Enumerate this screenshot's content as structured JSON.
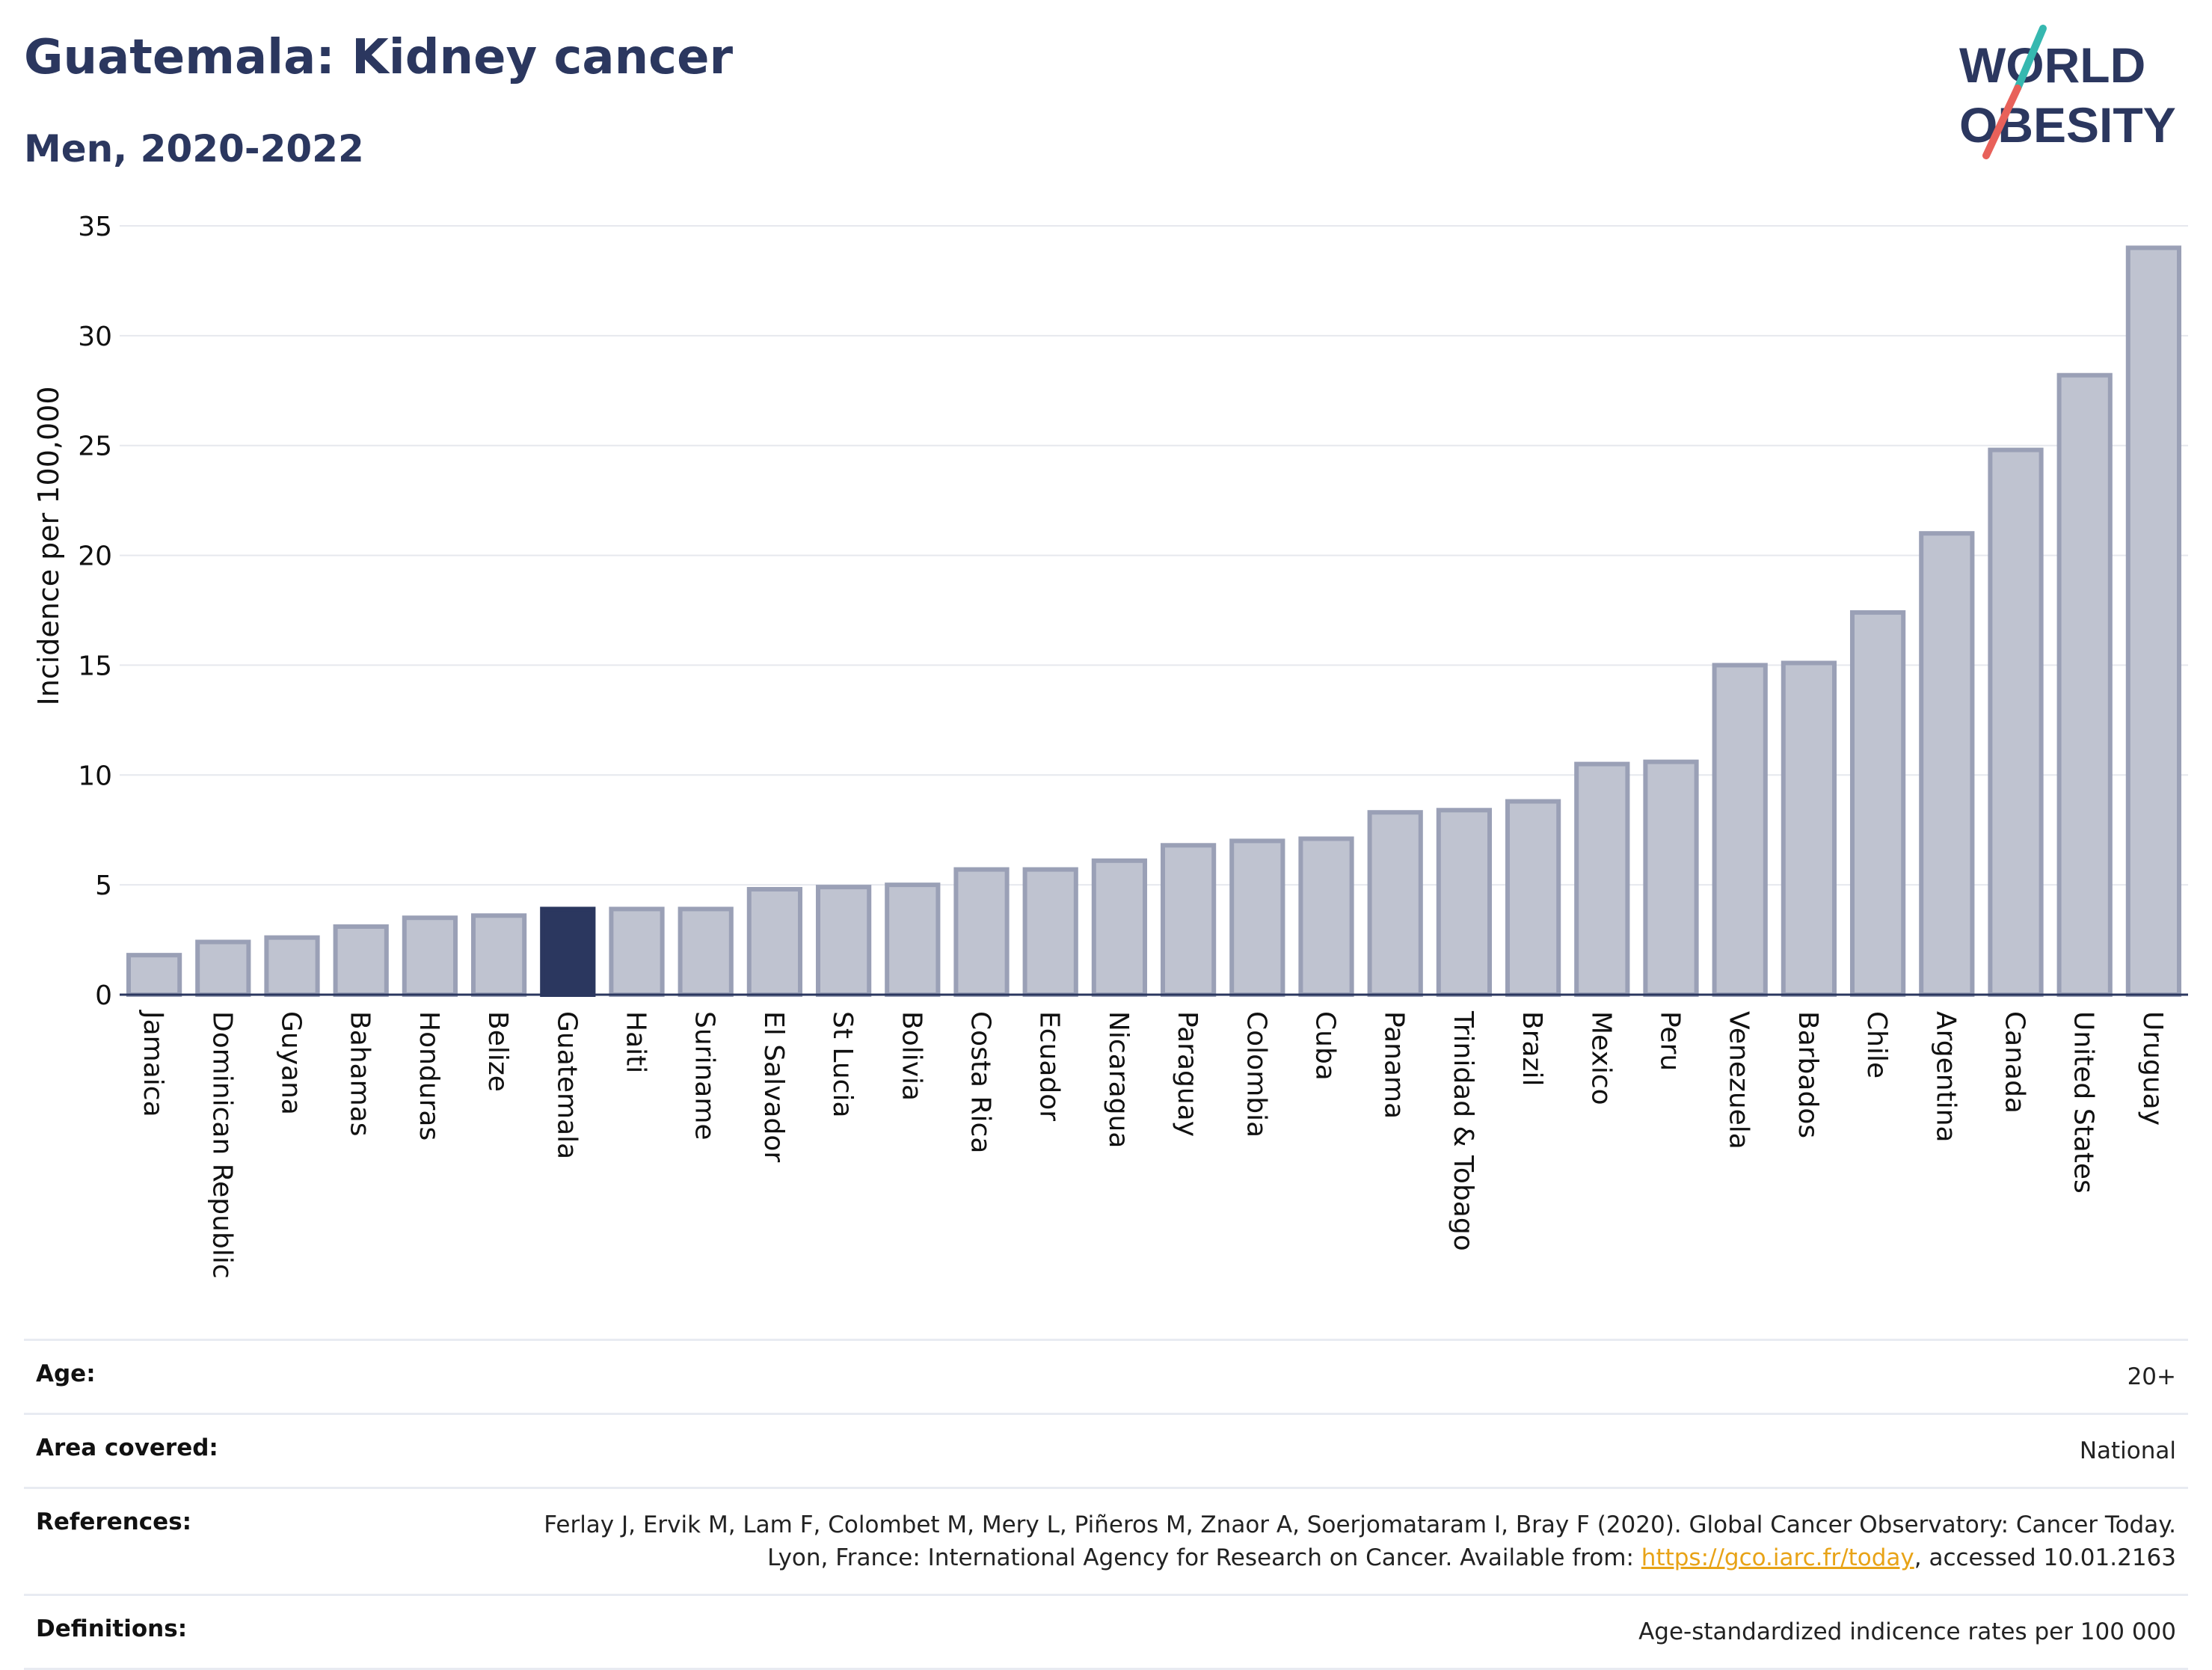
{
  "header": {
    "title": "Guatemala: Kidney cancer",
    "subtitle": "Men, 2020-2022"
  },
  "logo": {
    "line1": "WORLD",
    "line2": "OBESITY",
    "colors": {
      "text": "#2b375f",
      "slash_teal": "#36b8b0",
      "slash_red": "#e8615a"
    }
  },
  "colors": {
    "highlight_bar": "#2b375f",
    "bar_fill": "#bfc3d0",
    "bar_stroke": "#9aa0b6",
    "grid": "#e6e8ee",
    "axis": "#2b375f"
  },
  "chart_data": {
    "type": "bar",
    "title": "Guatemala: Kidney cancer",
    "subtitle": "Men, 2020-2022",
    "ylabel": "Incidence per 100,000",
    "xlabel": "",
    "ylim": [
      0,
      35
    ],
    "yticks": [
      0,
      5,
      10,
      15,
      20,
      25,
      30,
      35
    ],
    "grid": true,
    "highlight": "Guatemala",
    "categories": [
      "Jamaica",
      "Dominican Republic",
      "Guyana",
      "Bahamas",
      "Honduras",
      "Belize",
      "Guatemala",
      "Haiti",
      "Suriname",
      "El Salvador",
      "St Lucia",
      "Bolivia",
      "Costa Rica",
      "Ecuador",
      "Nicaragua",
      "Paraguay",
      "Colombia",
      "Cuba",
      "Panama",
      "Trinidad & Tobago",
      "Brazil",
      "Mexico",
      "Peru",
      "Venezuela",
      "Barbados",
      "Chile",
      "Argentina",
      "Canada",
      "United States",
      "Uruguay"
    ],
    "values": [
      1.8,
      2.4,
      2.6,
      3.1,
      3.5,
      3.6,
      3.9,
      3.9,
      3.9,
      4.8,
      4.9,
      5.0,
      5.7,
      5.7,
      6.1,
      6.8,
      7.0,
      7.1,
      8.3,
      8.4,
      8.8,
      10.5,
      10.6,
      15.0,
      15.1,
      17.4,
      21.0,
      24.8,
      28.2,
      34.0
    ]
  },
  "meta": {
    "age_label": "Age:",
    "age_value": "20+",
    "area_label": "Area covered:",
    "area_value": "National",
    "references_label": "References:",
    "references_text_1": "Ferlay J, Ervik M, Lam F, Colombet M, Mery L, Piñeros M, Znaor A, Soerjomataram I, Bray F (2020). Global Cancer Observatory: Cancer Today. Lyon, France: International Agency for Research on Cancer. Available from: ",
    "references_link": "https://gco.iarc.fr/today",
    "references_text_2": ", accessed 10.01.2163",
    "definitions_label": "Definitions:",
    "definitions_value": "Age-standardized indicence rates per 100 000"
  }
}
